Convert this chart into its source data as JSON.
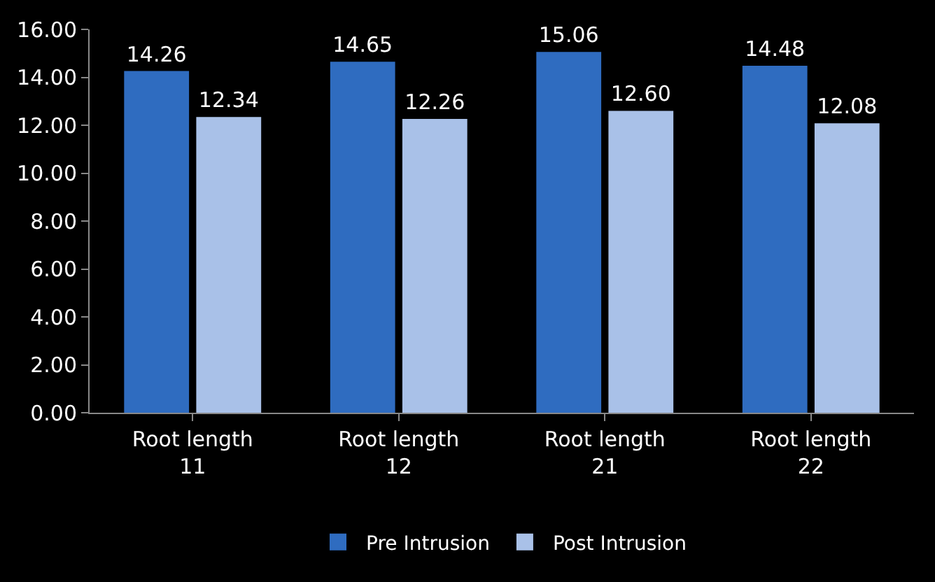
{
  "chart_data": {
    "type": "bar",
    "categories": [
      "Root length 11",
      "Root length 12",
      "Root length 21",
      "Root length 22"
    ],
    "series": [
      {
        "name": "Pre Intrusion",
        "color": "#2f6cc0",
        "values": [
          14.26,
          14.65,
          15.06,
          14.48
        ],
        "value_labels": [
          "14.26",
          "14.65",
          "15.06",
          "14.48"
        ]
      },
      {
        "name": "Post Intrusion",
        "color": "#a9c1e8",
        "values": [
          12.34,
          12.26,
          12.6,
          12.08
        ],
        "value_labels": [
          "12.34",
          "12.26",
          "12.60",
          "12.08"
        ]
      }
    ],
    "ylim": [
      0,
      16
    ],
    "yticks": [
      {
        "value": 0,
        "label": "0.00"
      },
      {
        "value": 2,
        "label": "2.00"
      },
      {
        "value": 4,
        "label": "4.00"
      },
      {
        "value": 6,
        "label": "6.00"
      },
      {
        "value": 8,
        "label": "8.00"
      },
      {
        "value": 10,
        "label": "10.00"
      },
      {
        "value": 12,
        "label": "12.00"
      },
      {
        "value": 14,
        "label": "14.00"
      },
      {
        "value": 16,
        "label": "16.00"
      }
    ],
    "grid": false,
    "legend": "bottom"
  }
}
